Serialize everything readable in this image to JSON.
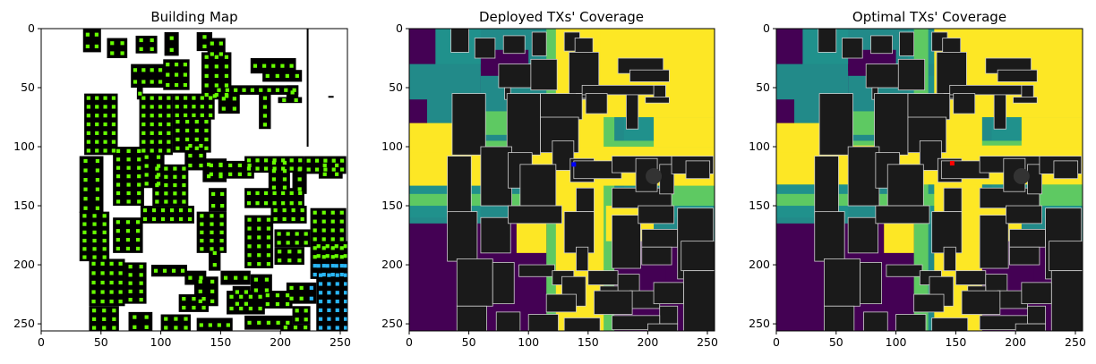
{
  "chart_data": [
    {
      "type": "heatmap",
      "title": "Building Map",
      "xlim": [
        0,
        256
      ],
      "ylim": [
        256,
        0
      ],
      "xticks": [
        0,
        50,
        100,
        150,
        200,
        250
      ],
      "yticks": [
        0,
        50,
        100,
        150,
        200,
        250
      ],
      "grid": false,
      "colors": {
        "background": "#ffffff",
        "building": "#000000",
        "candidate": "#66ff00",
        "candidate_alt": "#29b6f6",
        "deployed": "#0000ff"
      }
    },
    {
      "type": "heatmap",
      "title": "Deployed TXs' Coverage",
      "xlim": [
        0,
        256
      ],
      "ylim": [
        256,
        0
      ],
      "xticks": [
        0,
        50,
        100,
        150,
        200,
        250
      ],
      "yticks": [
        0,
        50,
        100,
        150,
        200,
        250
      ],
      "grid": false,
      "transmitter": {
        "x": 138,
        "y": 115,
        "color": "#0000ff"
      },
      "colors": {
        "level0": "#440154",
        "level1": "#21918c",
        "level2": "#5ec962",
        "level3": "#fde725",
        "building": "#1a1a1a"
      }
    },
    {
      "type": "heatmap",
      "title": "Optimal TXs' Coverage",
      "xlim": [
        0,
        256
      ],
      "ylim": [
        256,
        0
      ],
      "xticks": [
        0,
        50,
        100,
        150,
        200,
        250
      ],
      "yticks": [
        0,
        50,
        100,
        150,
        200,
        250
      ],
      "grid": false,
      "transmitter": {
        "x": 147,
        "y": 114,
        "color": "#ff0000"
      },
      "colors": {
        "level0": "#440154",
        "level1": "#21918c",
        "level2": "#5ec962",
        "level3": "#fde725",
        "building": "#1a1a1a"
      }
    }
  ]
}
